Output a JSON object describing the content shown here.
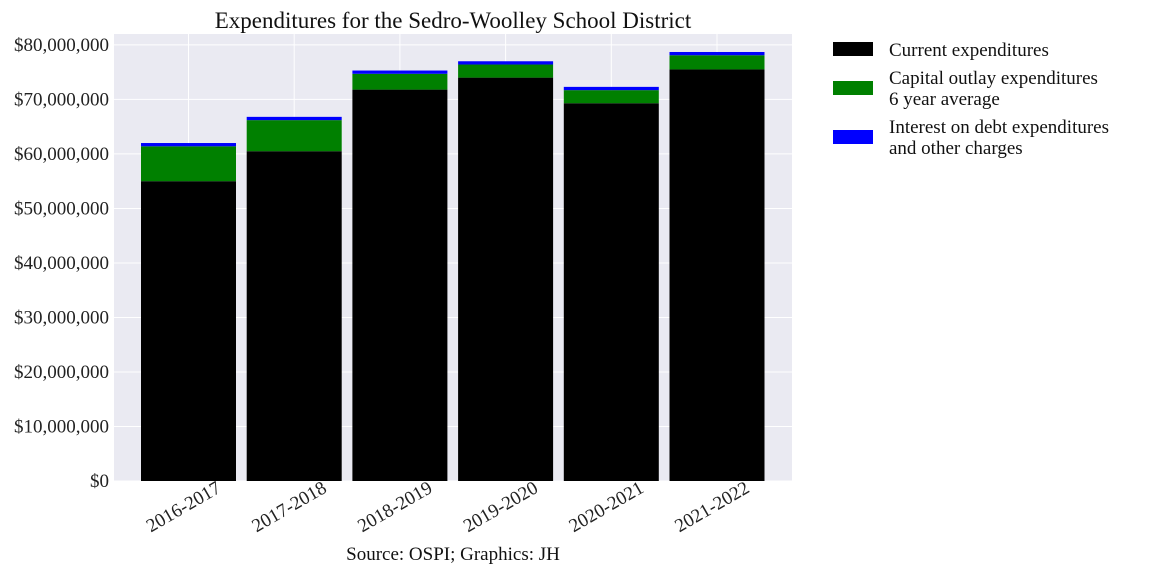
{
  "chart_data": {
    "type": "bar",
    "stacked": true,
    "title": "Expenditures for the Sedro-Woolley School District",
    "source": "Source: OSPI; Graphics: JH",
    "categories": [
      "2016-2017",
      "2017-2018",
      "2018-2019",
      "2019-2020",
      "2020-2021",
      "2021-2022"
    ],
    "series": [
      {
        "name": "Current expenditures",
        "color": "#000000",
        "values": [
          55000000,
          60500000,
          71800000,
          74000000,
          69300000,
          75500000
        ]
      },
      {
        "name": "Capital outlay expenditures\n6 year average",
        "color": "#008000",
        "values": [
          6400000,
          5700000,
          2900000,
          2400000,
          2400000,
          2600000
        ]
      },
      {
        "name": "Interest on debt expenditures\nand other charges",
        "color": "#0000ff",
        "values": [
          600000,
          600000,
          600000,
          600000,
          600000,
          600000
        ]
      }
    ],
    "yticks": [
      "$0",
      "$10,000,000",
      "$20,000,000",
      "$30,000,000",
      "$40,000,000",
      "$50,000,000",
      "$60,000,000",
      "$70,000,000",
      "$80,000,000"
    ],
    "ylim": [
      0,
      82000000
    ],
    "grid": true,
    "legend_position": "outside-right"
  }
}
